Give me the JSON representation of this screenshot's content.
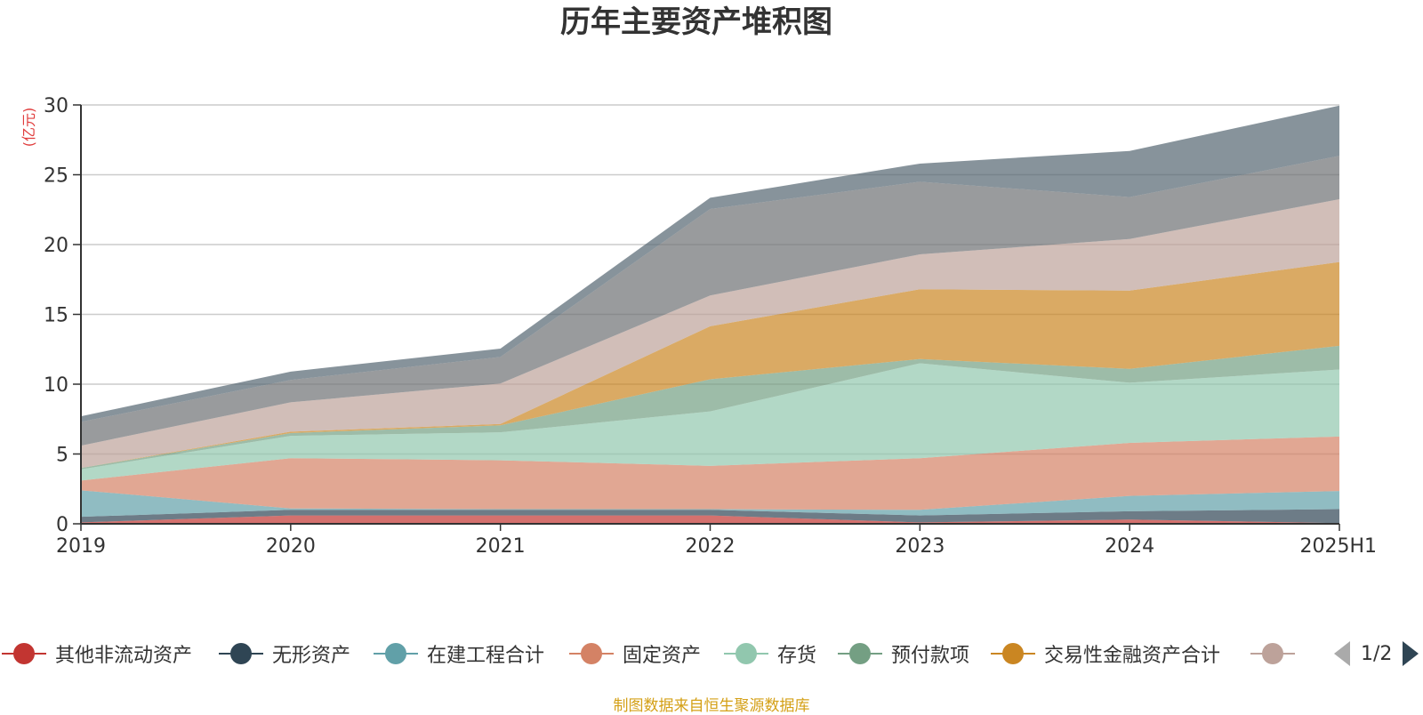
{
  "chart_data": {
    "type": "area",
    "stacked": true,
    "title": "历年主要资产堆积图",
    "ylabel": "(亿元)",
    "ylim": [
      0,
      30
    ],
    "yticks": [
      0,
      5,
      10,
      15,
      20,
      25,
      30
    ],
    "categories": [
      "2019",
      "2020",
      "2021",
      "2022",
      "2023",
      "2024",
      "2025H1"
    ],
    "grid": true,
    "legend_position": "bottom",
    "series": [
      {
        "name": "其他非流动资产",
        "color": "#c23531",
        "values": [
          0.1,
          0.6,
          0.6,
          0.6,
          0.1,
          0.3,
          0.05
        ]
      },
      {
        "name": "无形资产",
        "color": "#2f4554",
        "values": [
          0.4,
          0.4,
          0.4,
          0.4,
          0.5,
          0.6,
          1.0
        ]
      },
      {
        "name": "在建工程合计",
        "color": "#61a0a8",
        "values": [
          1.9,
          0.1,
          0.05,
          0.05,
          0.4,
          1.1,
          1.3
        ]
      },
      {
        "name": "固定资产",
        "color": "#d48265",
        "values": [
          0.7,
          3.6,
          3.5,
          3.1,
          3.7,
          3.8,
          3.9
        ]
      },
      {
        "name": "存货",
        "color": "#91c7ae",
        "values": [
          0.8,
          1.6,
          2.0,
          3.9,
          6.8,
          4.3,
          4.8
        ]
      },
      {
        "name": "预付款项",
        "color": "#749f83",
        "values": [
          0.1,
          0.2,
          0.5,
          2.3,
          0.3,
          1.0,
          1.7
        ]
      },
      {
        "name": "交易性金融资产合计",
        "color": "#ca8622",
        "values": [
          0.0,
          0.1,
          0.1,
          3.8,
          5.0,
          5.6,
          6.0
        ]
      },
      {
        "name": "",
        "color": "#bda29a",
        "values": [
          1.6,
          2.1,
          2.9,
          2.2,
          2.5,
          3.7,
          4.5
        ]
      },
      {
        "name": "",
        "color": "#6e7074",
        "values": [
          1.7,
          1.6,
          1.9,
          6.2,
          5.2,
          3.0,
          3.1
        ]
      },
      {
        "name": "",
        "color": "#546570",
        "values": [
          0.4,
          0.6,
          0.6,
          0.8,
          1.3,
          3.3,
          3.6
        ]
      }
    ]
  },
  "legend": {
    "items": [
      {
        "label": "其他非流动资产",
        "color": "#c23531"
      },
      {
        "label": "无形资产",
        "color": "#2f4554"
      },
      {
        "label": "在建工程合计",
        "color": "#61a0a8"
      },
      {
        "label": "固定资产",
        "color": "#d48265"
      },
      {
        "label": "存货",
        "color": "#91c7ae"
      },
      {
        "label": "预付款项",
        "color": "#749f83"
      },
      {
        "label": "交易性金融资产合计",
        "color": "#ca8622"
      },
      {
        "label": "",
        "color": "#bda29a"
      }
    ],
    "page_text": "1/2"
  },
  "source_note": "制图数据来自恒生聚源数据库"
}
